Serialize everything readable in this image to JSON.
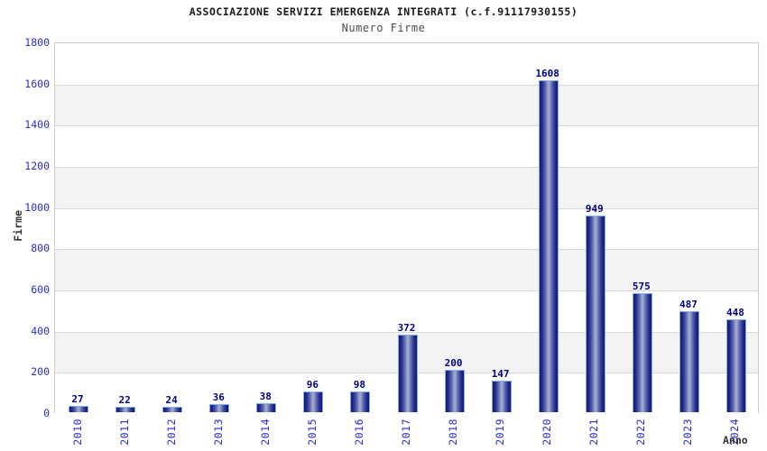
{
  "chart_data": {
    "type": "bar",
    "title": "ASSOCIAZIONE SERVIZI EMERGENZA INTEGRATI (c.f.91117930155)",
    "subtitle": "Numero Firme",
    "xlabel": "Anno",
    "ylabel": "Firme",
    "categories": [
      "2010",
      "2011",
      "2012",
      "2013",
      "2014",
      "2015",
      "2016",
      "2017",
      "2018",
      "2019",
      "2020",
      "2021",
      "2022",
      "2023",
      "2024"
    ],
    "values": [
      27,
      22,
      24,
      36,
      38,
      96,
      98,
      372,
      200,
      147,
      1608,
      949,
      575,
      487,
      448
    ],
    "ylim": [
      0,
      1800
    ],
    "ytick_step": 200,
    "yticks": [
      0,
      200,
      400,
      600,
      800,
      1000,
      1200,
      1400,
      1600,
      1800
    ],
    "value_labels_shown": true,
    "legend": "none",
    "grid": "horizontal-bands",
    "colors": {
      "title": "#1a1a1a",
      "subtitle": "#4d4d4d",
      "tick_label": "#2a2ad0",
      "value_label": "#00007d",
      "axis_title": "#333333",
      "bar_dark": "#16166f",
      "bar_light": "#a7afd5",
      "bar_border": "#7fb2f2",
      "band": "#f3f3f3",
      "grid_line": "#d9d9d9",
      "plot_border": "#cccccc",
      "background": "#ffffff"
    }
  }
}
